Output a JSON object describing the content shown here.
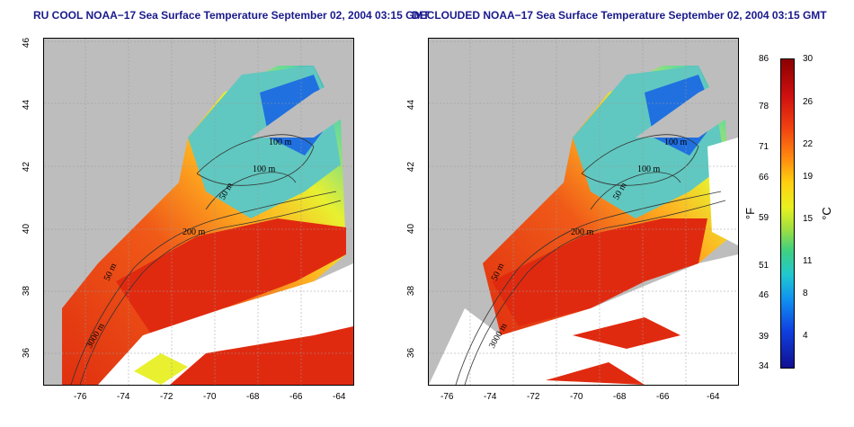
{
  "titles": {
    "left": "RU COOL NOAA−17 Sea Surface Temperature September 02, 2004 03:15 GMT",
    "right": "DECLOUDED NOAA−17 Sea Surface Temperature September 02, 2004 03:15 GMT"
  },
  "axes": {
    "x_ticks": [
      "-76",
      "-74",
      "-72",
      "-70",
      "-68",
      "-66",
      "-64"
    ],
    "y_ticks": [
      "46",
      "44",
      "42",
      "40",
      "38",
      "36"
    ]
  },
  "contour_labels": {
    "left": [
      "100 m",
      "100 m",
      "50 m",
      "200 m",
      "50 m",
      "3000 m"
    ],
    "right": [
      "100 m",
      "100 m",
      "50 m",
      "200 m",
      "50 m",
      "3000 m"
    ]
  },
  "colorbar": {
    "fahrenheit_ticks": [
      "86",
      "78",
      "71",
      "66",
      "59",
      "51",
      "46",
      "39",
      "34"
    ],
    "celsius_ticks": [
      "30",
      "26",
      "22",
      "19",
      "15",
      "11",
      "8",
      "4"
    ],
    "fahrenheit_unit": "°F",
    "celsius_unit": "°C"
  },
  "colors": {
    "land": "#bdbdbd",
    "cloud": "#ffffff",
    "title": "#1a1a8c"
  }
}
